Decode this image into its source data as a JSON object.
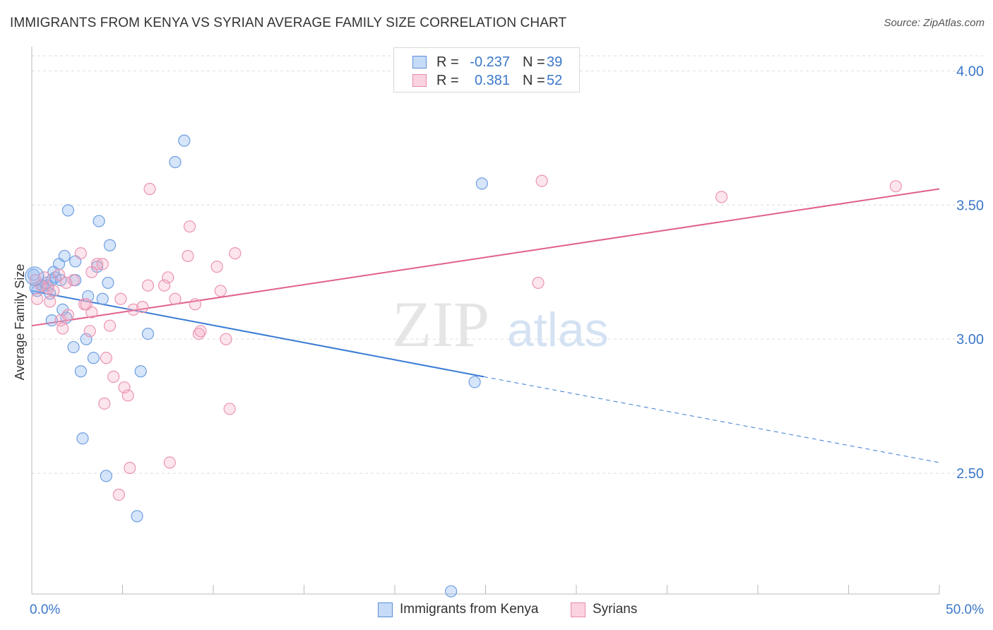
{
  "header": {
    "title": "IMMIGRANTS FROM KENYA VS SYRIAN AVERAGE FAMILY SIZE CORRELATION CHART",
    "source": "Source: ZipAtlas.com"
  },
  "watermark": {
    "zip": "ZIP",
    "atlas": "atlas"
  },
  "legend": {
    "rows": [
      {
        "r_label": "R =",
        "r_value": "-0.237",
        "n_label": "N =",
        "n_value": "39",
        "color": "#8ab4f0"
      },
      {
        "r_label": "R =",
        "r_value": "0.381",
        "n_label": "N =",
        "n_value": "52",
        "color": "#f4a8c0"
      }
    ]
  },
  "bottom_legend": {
    "kenya": "Immigrants from Kenya",
    "syrians": "Syrians"
  },
  "chart_data": {
    "type": "scatter",
    "title": "IMMIGRANTS FROM KENYA VS SYRIAN AVERAGE FAMILY SIZE CORRELATION CHART",
    "xlabel": "",
    "ylabel": "Average Family Size",
    "xlim": [
      0,
      50
    ],
    "ylim": [
      2.05,
      4.08
    ],
    "x_tick_labels": [
      "0.0%",
      "50.0%"
    ],
    "y_ticks": [
      2.5,
      3.0,
      3.5,
      4.0
    ],
    "y_tick_labels": [
      "2.50",
      "3.00",
      "3.50",
      "4.00"
    ],
    "grid": "horizontal dashed",
    "colors": {
      "kenya": "#3a7bd5",
      "syrians": "#e0608c",
      "kenya_fill": "#8ab4f0",
      "syrians_fill": "#f4a8c0",
      "axis_text": "#3b78c9"
    },
    "series": [
      {
        "name": "Immigrants from Kenya",
        "points": [
          [
            0.1,
            3.24
          ],
          [
            0.3,
            3.18
          ],
          [
            0.6,
            3.2
          ],
          [
            0.8,
            3.21
          ],
          [
            0.9,
            3.2
          ],
          [
            1.0,
            3.17
          ],
          [
            1.1,
            3.22
          ],
          [
            1.2,
            3.25
          ],
          [
            1.3,
            3.23
          ],
          [
            1.1,
            3.07
          ],
          [
            1.5,
            3.28
          ],
          [
            1.6,
            3.22
          ],
          [
            1.7,
            3.11
          ],
          [
            1.8,
            3.31
          ],
          [
            1.9,
            3.08
          ],
          [
            2.0,
            3.48
          ],
          [
            2.3,
            2.97
          ],
          [
            2.4,
            3.22
          ],
          [
            2.4,
            3.29
          ],
          [
            2.7,
            2.88
          ],
          [
            2.8,
            2.63
          ],
          [
            3.0,
            3.0
          ],
          [
            3.1,
            3.16
          ],
          [
            3.4,
            2.93
          ],
          [
            3.6,
            3.27
          ],
          [
            3.7,
            3.44
          ],
          [
            3.9,
            3.15
          ],
          [
            4.1,
            2.49
          ],
          [
            4.2,
            3.21
          ],
          [
            4.3,
            3.35
          ],
          [
            5.8,
            2.34
          ],
          [
            6.0,
            2.88
          ],
          [
            6.4,
            3.02
          ],
          [
            7.9,
            3.66
          ],
          [
            8.4,
            3.74
          ],
          [
            23.1,
            2.06
          ],
          [
            24.4,
            2.84
          ],
          [
            24.8,
            3.58
          ],
          [
            0.2,
            3.19
          ]
        ]
      },
      {
        "name": "Syrians",
        "points": [
          [
            0.2,
            3.22
          ],
          [
            0.3,
            3.15
          ],
          [
            0.5,
            3.2
          ],
          [
            0.7,
            3.23
          ],
          [
            0.9,
            3.19
          ],
          [
            1.0,
            3.14
          ],
          [
            1.2,
            3.18
          ],
          [
            1.5,
            3.24
          ],
          [
            1.6,
            3.07
          ],
          [
            1.7,
            3.04
          ],
          [
            1.9,
            3.21
          ],
          [
            2.0,
            3.09
          ],
          [
            2.3,
            3.22
          ],
          [
            2.7,
            3.32
          ],
          [
            2.9,
            3.13
          ],
          [
            3.0,
            3.13
          ],
          [
            3.2,
            3.03
          ],
          [
            3.3,
            3.1
          ],
          [
            3.3,
            3.25
          ],
          [
            3.6,
            3.28
          ],
          [
            3.9,
            3.28
          ],
          [
            4.0,
            2.76
          ],
          [
            4.1,
            2.93
          ],
          [
            4.3,
            3.05
          ],
          [
            4.5,
            2.86
          ],
          [
            4.8,
            2.42
          ],
          [
            4.9,
            3.15
          ],
          [
            5.1,
            2.82
          ],
          [
            5.3,
            2.79
          ],
          [
            5.4,
            2.52
          ],
          [
            5.6,
            3.11
          ],
          [
            6.1,
            3.12
          ],
          [
            6.4,
            3.2
          ],
          [
            6.5,
            3.56
          ],
          [
            7.3,
            3.2
          ],
          [
            7.5,
            3.23
          ],
          [
            7.6,
            2.54
          ],
          [
            7.9,
            3.15
          ],
          [
            8.6,
            3.31
          ],
          [
            8.7,
            3.42
          ],
          [
            9.0,
            3.13
          ],
          [
            9.2,
            3.02
          ],
          [
            9.3,
            3.03
          ],
          [
            10.2,
            3.27
          ],
          [
            10.4,
            3.18
          ],
          [
            10.7,
            3.0
          ],
          [
            10.9,
            2.74
          ],
          [
            11.2,
            3.32
          ],
          [
            27.9,
            3.21
          ],
          [
            28.1,
            3.59
          ],
          [
            38.0,
            3.53
          ],
          [
            47.6,
            3.57
          ]
        ]
      }
    ],
    "trend_lines": [
      {
        "series": "Immigrants from Kenya",
        "x0": 0,
        "y0": 3.18,
        "x1": 24.9,
        "y1": 2.86,
        "dashed_to_x": 50,
        "dashed_to_y": 2.54
      },
      {
        "series": "Syrians",
        "x0": 0,
        "y0": 3.05,
        "x1": 50,
        "y1": 3.56
      }
    ]
  }
}
